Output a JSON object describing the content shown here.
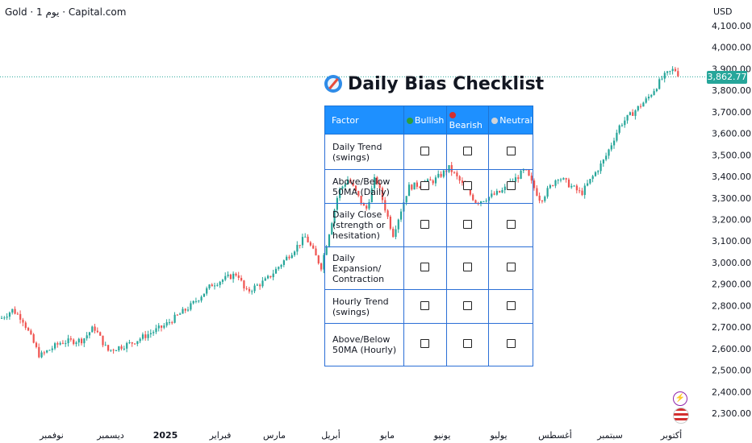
{
  "header": {
    "symbol": "Gold · 1 يوم · Capital.com",
    "currency": "USD"
  },
  "price_tag": "3,862.77",
  "overlay": {
    "title": "Daily Bias Checklist",
    "columns": [
      "Factor",
      "Bullish",
      "Bearish",
      "Neutral"
    ],
    "column_colors": [
      "",
      "#2e9e3d",
      "#d32f2f",
      "#cfd3d8"
    ],
    "rows": [
      "Daily Trend (swings)",
      "Above/Below 50MA (Daily)",
      "Daily Close (strength or hesitation)",
      "Daily Expansion/ Contraction",
      "Hourly Trend (swings)",
      "Above/Below 50MA (Hourly)"
    ]
  },
  "colors": {
    "up": "#26a69a",
    "down": "#ef5350",
    "axis_text": "#131722",
    "checklist_header": "#1e90ff"
  },
  "icons": [
    "flash-icon",
    "us-flag-icon",
    "compass-icon"
  ],
  "chart_data": {
    "type": "candlestick",
    "title": "",
    "xlabel": "",
    "ylabel": "USD",
    "ylim": [
      2250,
      4150
    ],
    "y_ticks": [
      "4,100.00",
      "4,000.00",
      "3,900.00",
      "3,800.00",
      "3,700.00",
      "3,600.00",
      "3,500.00",
      "3,400.00",
      "3,300.00",
      "3,200.00",
      "3,100.00",
      "3,000.00",
      "2,900.00",
      "2,800.00",
      "2,700.00",
      "2,600.00",
      "2,500.00",
      "2,400.00",
      "2,300.00"
    ],
    "x_ticks": [
      "نوفمبر",
      "ديسمبر",
      "2025",
      "فبراير",
      "مارس",
      "أبريل",
      "مايو",
      "يونيو",
      "يوليو",
      "أغسطس",
      "سبتمبر",
      "أكتوبر"
    ],
    "last_price": 3862.77,
    "close_path": [
      {
        "d": "2024-10-25",
        "c": 2740
      },
      {
        "d": "2024-10-31",
        "c": 2780
      },
      {
        "d": "2024-11-05",
        "c": 2740
      },
      {
        "d": "2024-11-14",
        "c": 2565
      },
      {
        "d": "2024-11-25",
        "c": 2630
      },
      {
        "d": "2024-12-06",
        "c": 2640
      },
      {
        "d": "2024-12-12",
        "c": 2700
      },
      {
        "d": "2024-12-19",
        "c": 2590
      },
      {
        "d": "2024-12-31",
        "c": 2625
      },
      {
        "d": "2025-01-17",
        "c": 2705
      },
      {
        "d": "2025-01-31",
        "c": 2800
      },
      {
        "d": "2025-02-11",
        "c": 2900
      },
      {
        "d": "2025-02-24",
        "c": 2950
      },
      {
        "d": "2025-02-28",
        "c": 2860
      },
      {
        "d": "2025-03-11",
        "c": 2920
      },
      {
        "d": "2025-03-31",
        "c": 3120
      },
      {
        "d": "2025-04-08",
        "c": 2980
      },
      {
        "d": "2025-04-17",
        "c": 3330
      },
      {
        "d": "2025-04-22",
        "c": 3390
      },
      {
        "d": "2025-05-01",
        "c": 3240
      },
      {
        "d": "2025-05-06",
        "c": 3400
      },
      {
        "d": "2025-05-15",
        "c": 3130
      },
      {
        "d": "2025-05-23",
        "c": 3350
      },
      {
        "d": "2025-06-05",
        "c": 3380
      },
      {
        "d": "2025-06-13",
        "c": 3440
      },
      {
        "d": "2025-06-27",
        "c": 3280
      },
      {
        "d": "2025-07-10",
        "c": 3330
      },
      {
        "d": "2025-07-22",
        "c": 3430
      },
      {
        "d": "2025-07-30",
        "c": 3290
      },
      {
        "d": "2025-08-08",
        "c": 3400
      },
      {
        "d": "2025-08-20",
        "c": 3320
      },
      {
        "d": "2025-09-01",
        "c": 3480
      },
      {
        "d": "2025-09-09",
        "c": 3640
      },
      {
        "d": "2025-09-23",
        "c": 3760
      },
      {
        "d": "2025-10-01",
        "c": 3860
      },
      {
        "d": "2025-10-07",
        "c": 3900
      },
      {
        "d": "2025-10-10",
        "c": 3862.77
      }
    ]
  }
}
